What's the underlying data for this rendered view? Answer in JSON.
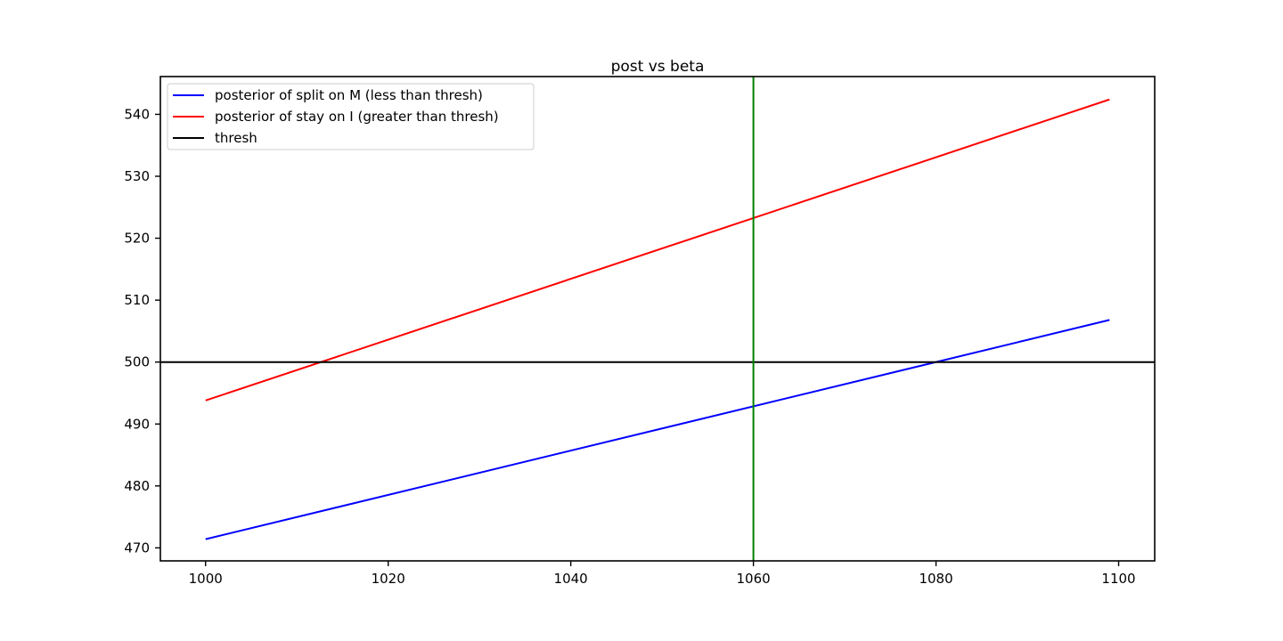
{
  "chart_data": {
    "type": "line",
    "title": "post vs beta",
    "xlabel": "",
    "ylabel": "",
    "xlim": [
      995.05,
      1103.95
    ],
    "ylim": [
      467.9,
      546.1
    ],
    "xticks": [
      1000,
      1020,
      1040,
      1060,
      1080,
      1100
    ],
    "yticks": [
      470,
      480,
      490,
      500,
      510,
      520,
      530,
      540
    ],
    "grid": false,
    "legend_position": "upper-left",
    "series": [
      {
        "name": "posterior of split on M (less than thresh)",
        "color": "#0000ff",
        "x": [
          1000,
          1099
        ],
        "y": [
          471.4,
          506.8
        ]
      },
      {
        "name": "posterior of stay on I (greater than thresh)",
        "color": "#ff0000",
        "x": [
          1000,
          1099
        ],
        "y": [
          493.8,
          542.4
        ]
      }
    ],
    "hlines": [
      {
        "name": "thresh",
        "color": "#000000",
        "y": 500
      }
    ],
    "vlines": [
      {
        "color": "#008000",
        "x": 1060
      }
    ]
  }
}
